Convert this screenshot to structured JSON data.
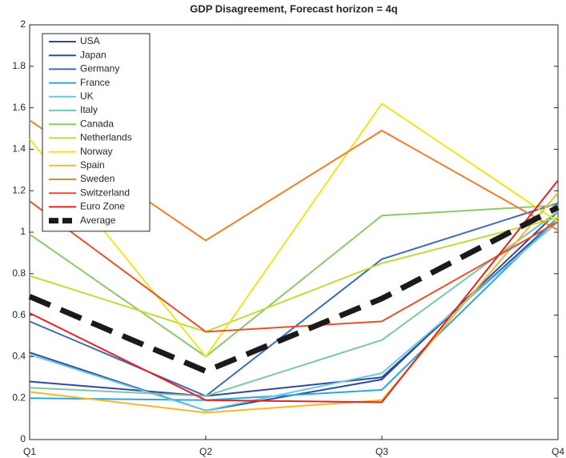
{
  "chart_data": {
    "type": "line",
    "title": "GDP Disagreement, Forecast horizon = 4q",
    "categories": [
      "Q1",
      "Q2",
      "Q3",
      "Q4"
    ],
    "ylim": [
      0,
      2
    ],
    "yticks": [
      0,
      0.2,
      0.4,
      0.6,
      0.8,
      1,
      1.2,
      1.4,
      1.6,
      1.8,
      2
    ],
    "legend": "upper-left",
    "series": [
      {
        "name": "USA",
        "color": "#34479a",
        "values": [
          0.28,
          0.21,
          0.3,
          1.07
        ]
      },
      {
        "name": "Japan",
        "color": "#2d4b9f",
        "values": [
          0.42,
          0.14,
          0.29,
          1.1
        ]
      },
      {
        "name": "Germany",
        "color": "#3b6cb4",
        "values": [
          0.57,
          0.21,
          0.87,
          1.14
        ]
      },
      {
        "name": "France",
        "color": "#2aa7dd",
        "values": [
          0.2,
          0.19,
          0.24,
          1.07
        ]
      },
      {
        "name": "UK",
        "color": "#6bc7dc",
        "values": [
          0.41,
          0.14,
          0.32,
          1.05
        ]
      },
      {
        "name": "Italy",
        "color": "#7cc5a6",
        "values": [
          0.25,
          0.21,
          0.48,
          1.1
        ]
      },
      {
        "name": "Canada",
        "color": "#8dc86b",
        "values": [
          0.99,
          0.4,
          1.08,
          1.13
        ]
      },
      {
        "name": "Netherlands",
        "color": "#c3da3c",
        "values": [
          0.79,
          0.52,
          0.85,
          1.07
        ]
      },
      {
        "name": "Norway",
        "color": "#f0e41f",
        "values": [
          1.45,
          0.4,
          1.62,
          1.05
        ]
      },
      {
        "name": "Spain",
        "color": "#f8b72a",
        "values": [
          0.23,
          0.13,
          0.19,
          1.19
        ]
      },
      {
        "name": "Sweden",
        "color": "#ef8029",
        "values": [
          1.54,
          0.96,
          1.49,
          1.01
        ]
      },
      {
        "name": "Switzerland",
        "color": "#e6502a",
        "values": [
          1.15,
          0.52,
          0.57,
          1.05
        ]
      },
      {
        "name": "Euro Zone",
        "color": "#e52222",
        "values": [
          0.61,
          0.19,
          0.18,
          1.25
        ]
      },
      {
        "name": "Average",
        "color": "#1a1a1a",
        "dash": true,
        "values": [
          0.69,
          0.33,
          0.68,
          1.12
        ]
      }
    ]
  }
}
